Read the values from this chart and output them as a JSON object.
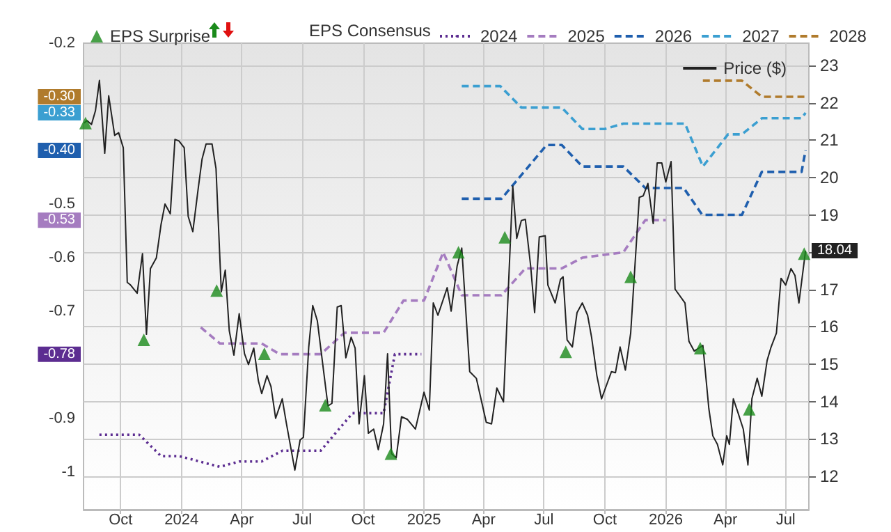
{
  "chart_data": {
    "type": "line",
    "legend_title": "EPS Consensus",
    "annotations": [
      "-0.78",
      "-0.53",
      "-0.40",
      "-0.33",
      "-0.30"
    ],
    "legend": "top",
    "grid": true,
    "xlim": [
      "2023-08-06",
      "2026-08-05"
    ],
    "xticks": [
      {
        "value": "2023-10-01",
        "label": "Oct"
      },
      {
        "value": "2024-01-01",
        "label": "2024"
      },
      {
        "value": "2024-04-01",
        "label": "Apr"
      },
      {
        "value": "2024-07-01",
        "label": "Jul"
      },
      {
        "value": "2024-10-01",
        "label": "Oct"
      },
      {
        "value": "2025-01-01",
        "label": "2025"
      },
      {
        "value": "2025-04-01",
        "label": "Apr"
      },
      {
        "value": "2025-07-01",
        "label": "Jul"
      },
      {
        "value": "2025-10-01",
        "label": "Oct"
      },
      {
        "value": "2026-01-01",
        "label": "2026"
      },
      {
        "value": "2026-04-01",
        "label": "Apr"
      },
      {
        "value": "2026-07-01",
        "label": "Jul"
      }
    ],
    "ylim": [
      -1.07,
      -0.2
    ],
    "yticks": [
      -1,
      -0.9,
      -0.7,
      -0.6,
      -0.5,
      -0.2
    ],
    "y2lim": [
      11.1,
      23.6
    ],
    "y2ticks": [
      12,
      13,
      14,
      15,
      16,
      17,
      {
        "value": 18,
        "label": null
      },
      19,
      20,
      21,
      22,
      23
    ],
    "series": [
      {
        "name": "EPS Surprise",
        "type": "scatter",
        "axis": "y2",
        "marker": "triangle",
        "color": "#1a8a1a",
        "x": [
          "2023-08-09",
          "2023-11-05",
          "2024-02-23",
          "2024-05-05",
          "2024-08-05",
          "2024-11-12",
          "2025-02-22",
          "2025-05-03",
          "2025-08-03",
          "2025-11-09",
          "2026-02-22",
          "2026-05-07",
          "2026-07-29"
        ],
        "values": [
          21.46,
          15.65,
          16.97,
          15.28,
          13.9,
          12.6,
          18.0,
          18.4,
          15.33,
          17.34,
          15.43,
          13.79,
          17.96
        ]
      },
      {
        "name": "2024",
        "line_style": "dotted",
        "color": "#5c2d91",
        "x": [
          "2023-08-30",
          "2023-10-29",
          "2023-12-01",
          "2023-12-28",
          "2024-02-28",
          "2024-03-28",
          "2024-05-01",
          "2024-06-01",
          "2024-07-29",
          "2024-09-15",
          "2024-11-01",
          "2024-11-18",
          "2024-12-28"
        ],
        "values": [
          -0.93,
          -0.93,
          -0.97,
          -0.97,
          -0.99,
          -0.98,
          -0.98,
          -0.96,
          -0.96,
          -0.89,
          -0.89,
          -0.78,
          -0.78
        ]
      },
      {
        "name": "2025",
        "line_style": "dashed",
        "color": "#a57cc0",
        "x": [
          "2024-01-30",
          "2024-02-28",
          "2024-05-01",
          "2024-05-28",
          "2024-07-29",
          "2024-09-03",
          "2024-11-01",
          "2024-12-01",
          "2025-01-01",
          "2025-01-30",
          "2025-02-27",
          "2025-04-28",
          "2025-06-03",
          "2025-07-28",
          "2025-08-28",
          "2025-10-29",
          "2025-12-01",
          "2026-01-01"
        ],
        "values": [
          -0.73,
          -0.76,
          -0.76,
          -0.78,
          -0.78,
          -0.74,
          -0.74,
          -0.68,
          -0.68,
          -0.59,
          -0.67,
          -0.67,
          -0.62,
          -0.62,
          -0.6,
          -0.59,
          -0.53,
          -0.53
        ]
      },
      {
        "name": "2026",
        "line_style": "dashed",
        "color": "#1f5fae",
        "x": [
          "2025-02-27",
          "2025-04-28",
          "2025-07-05",
          "2025-07-28",
          "2025-08-28",
          "2025-10-29",
          "2025-12-01",
          "2026-01-28",
          "2026-02-25",
          "2026-04-26",
          "2026-05-26",
          "2026-07-25",
          "2026-07-31"
        ],
        "values": [
          -0.49,
          -0.49,
          -0.39,
          -0.39,
          -0.43,
          -0.43,
          -0.47,
          -0.47,
          -0.52,
          -0.52,
          -0.44,
          -0.44,
          -0.4
        ]
      },
      {
        "name": "2027",
        "line_style": "dashed",
        "color": "#3b9fd1",
        "x": [
          "2025-02-27",
          "2025-04-26",
          "2025-05-28",
          "2025-07-28",
          "2025-08-28",
          "2025-10-01",
          "2025-10-29",
          "2026-01-30",
          "2026-02-26",
          "2026-04-05",
          "2026-04-26",
          "2026-05-26",
          "2026-07-25",
          "2026-07-31"
        ],
        "values": [
          -0.28,
          -0.28,
          -0.32,
          -0.32,
          -0.36,
          -0.36,
          -0.35,
          -0.35,
          -0.43,
          -0.37,
          -0.37,
          -0.34,
          -0.34,
          -0.33
        ]
      },
      {
        "name": "2028",
        "line_style": "dashed",
        "color": "#b07b2c",
        "x": [
          "2026-02-26",
          "2026-04-26",
          "2026-05-26",
          "2026-07-31"
        ],
        "values": [
          -0.27,
          -0.27,
          -0.3,
          -0.3
        ]
      },
      {
        "name": "Price ($)",
        "axis": "y2",
        "line_style": "solid",
        "color": "#222222",
        "x": [
          "2023-08-07",
          "2023-08-11",
          "2023-08-18",
          "2023-08-24",
          "2023-08-30",
          "2023-09-07",
          "2023-09-13",
          "2023-09-22",
          "2023-09-28",
          "2023-10-05",
          "2023-10-11",
          "2023-10-16",
          "2023-10-26",
          "2023-11-03",
          "2023-11-09",
          "2023-11-15",
          "2023-11-24",
          "2023-12-01",
          "2023-12-07",
          "2023-12-15",
          "2023-12-22",
          "2023-12-28",
          "2024-01-05",
          "2024-01-11",
          "2024-01-18",
          "2024-01-26",
          "2024-02-01",
          "2024-02-07",
          "2024-02-16",
          "2024-02-22",
          "2024-03-01",
          "2024-03-07",
          "2024-03-13",
          "2024-03-20",
          "2024-03-28",
          "2024-04-05",
          "2024-04-11",
          "2024-04-19",
          "2024-04-26",
          "2024-05-01",
          "2024-05-09",
          "2024-05-15",
          "2024-05-22",
          "2024-06-01",
          "2024-06-07",
          "2024-06-20",
          "2024-06-28",
          "2024-07-03",
          "2024-07-11",
          "2024-07-17",
          "2024-07-24",
          "2024-08-03",
          "2024-08-09",
          "2024-08-15",
          "2024-08-23",
          "2024-08-29",
          "2024-09-05",
          "2024-09-13",
          "2024-09-19",
          "2024-09-25",
          "2024-10-03",
          "2024-10-09",
          "2024-10-17",
          "2024-10-24",
          "2024-11-01",
          "2024-11-07",
          "2024-11-13",
          "2024-11-20",
          "2024-11-28",
          "2024-12-07",
          "2024-12-19",
          "2025-01-01",
          "2025-01-09",
          "2025-01-15",
          "2025-01-22",
          "2025-02-05",
          "2025-02-11",
          "2025-02-20",
          "2025-02-27",
          "2025-03-11",
          "2025-03-21",
          "2025-04-05",
          "2025-04-13",
          "2025-04-21",
          "2025-05-01",
          "2025-05-15",
          "2025-05-21",
          "2025-05-28",
          "2025-06-03",
          "2025-06-11",
          "2025-06-17",
          "2025-06-24",
          "2025-07-03",
          "2025-07-07",
          "2025-07-18",
          "2025-07-26",
          "2025-07-30",
          "2025-08-05",
          "2025-08-13",
          "2025-08-20",
          "2025-08-28",
          "2025-09-05",
          "2025-09-11",
          "2025-09-19",
          "2025-09-26",
          "2025-10-05",
          "2025-10-11",
          "2025-10-17",
          "2025-10-24",
          "2025-11-01",
          "2025-11-09",
          "2025-11-22",
          "2025-11-28",
          "2025-12-05",
          "2025-12-13",
          "2025-12-19",
          "2025-12-26",
          "2026-01-01",
          "2026-01-09",
          "2026-01-15",
          "2026-01-30",
          "2026-02-05",
          "2026-02-13",
          "2026-02-26",
          "2026-03-07",
          "2026-03-13",
          "2026-03-20",
          "2026-03-28",
          "2026-04-03",
          "2026-04-07",
          "2026-04-13",
          "2026-04-20",
          "2026-04-28",
          "2026-05-05",
          "2026-05-11",
          "2026-05-19",
          "2026-05-26",
          "2026-06-03",
          "2026-06-09",
          "2026-06-17",
          "2026-06-24",
          "2026-07-01",
          "2026-07-09",
          "2026-07-15",
          "2026-07-21",
          "2026-07-31"
        ],
        "values": [
          21.46,
          21.53,
          21.42,
          21.79,
          22.6,
          20.65,
          22.19,
          21.13,
          21.2,
          20.8,
          17.19,
          17.12,
          16.9,
          17.96,
          15.8,
          17.56,
          17.85,
          18.74,
          19.29,
          19.03,
          21.02,
          20.98,
          20.8,
          18.96,
          18.55,
          19.69,
          20.5,
          20.9,
          20.9,
          20.24,
          16.94,
          17.52,
          15.9,
          15.24,
          16.35,
          15.28,
          14.99,
          15.43,
          14.55,
          14.21,
          14.69,
          14.4,
          13.55,
          14.07,
          13.44,
          12.16,
          12.97,
          13.04,
          15.46,
          16.57,
          16.16,
          14.73,
          13.88,
          13.95,
          16.53,
          16.57,
          15.17,
          15.72,
          15.43,
          13.4,
          14.69,
          13.15,
          13.26,
          12.71,
          13.4,
          15.28,
          12.6,
          12.49,
          13.59,
          13.52,
          13.26,
          14.25,
          13.77,
          16.64,
          16.31,
          17.05,
          16.42,
          17.63,
          18.11,
          14.8,
          14.62,
          13.44,
          13.4,
          14.36,
          13.99,
          19.77,
          18.37,
          18.85,
          18.88,
          17.63,
          16.38,
          18.41,
          18.44,
          17.12,
          16.64,
          17.27,
          17.34,
          15.65,
          15.46,
          16.38,
          16.64,
          16.31,
          15.72,
          14.69,
          14.07,
          14.51,
          14.8,
          14.77,
          15.46,
          14.84,
          15.83,
          19.47,
          19.51,
          19.84,
          18.77,
          20.39,
          20.39,
          19.88,
          20.43,
          17.01,
          16.64,
          15.61,
          15.35,
          15.5,
          13.81,
          13.08,
          12.85,
          12.3,
          13.08,
          12.85,
          14.07,
          13.7,
          13.26,
          12.3,
          14.07,
          14.62,
          14.14,
          15.1,
          15.46,
          15.83,
          17.3,
          17.12,
          17.56,
          17.38,
          16.64,
          18.04
        ],
        "value_labels": [
          null,
          null,
          null,
          null,
          null,
          null,
          null,
          null,
          null,
          null,
          null,
          null,
          null,
          null,
          null,
          null,
          null,
          null,
          null,
          null,
          null,
          null,
          null,
          null,
          null,
          null,
          null,
          null,
          null,
          null,
          null,
          null,
          null,
          null,
          null,
          null,
          null,
          null,
          null,
          null,
          null,
          null,
          null,
          null,
          null,
          null,
          null,
          null,
          null,
          null,
          null,
          null,
          null,
          null,
          null,
          null,
          null,
          null,
          null,
          null,
          null,
          null,
          null,
          null,
          null,
          null,
          null,
          null,
          null,
          null,
          null,
          null,
          null,
          null,
          null,
          null,
          null,
          null,
          null,
          null,
          null,
          null,
          null,
          null,
          null,
          null,
          null,
          null,
          null,
          null,
          null,
          null,
          null,
          null,
          null,
          null,
          null,
          null,
          null,
          null,
          null,
          null,
          null,
          null,
          null,
          null,
          null,
          null,
          null,
          null,
          null,
          null,
          null,
          null,
          null,
          null,
          null,
          null,
          null,
          null,
          null,
          null,
          null,
          null,
          null,
          null,
          null,
          null,
          null,
          null,
          null,
          null,
          null,
          null,
          null,
          null,
          null,
          null,
          null,
          null,
          null,
          null,
          null,
          null,
          null,
          "18.04"
        ]
      }
    ]
  }
}
